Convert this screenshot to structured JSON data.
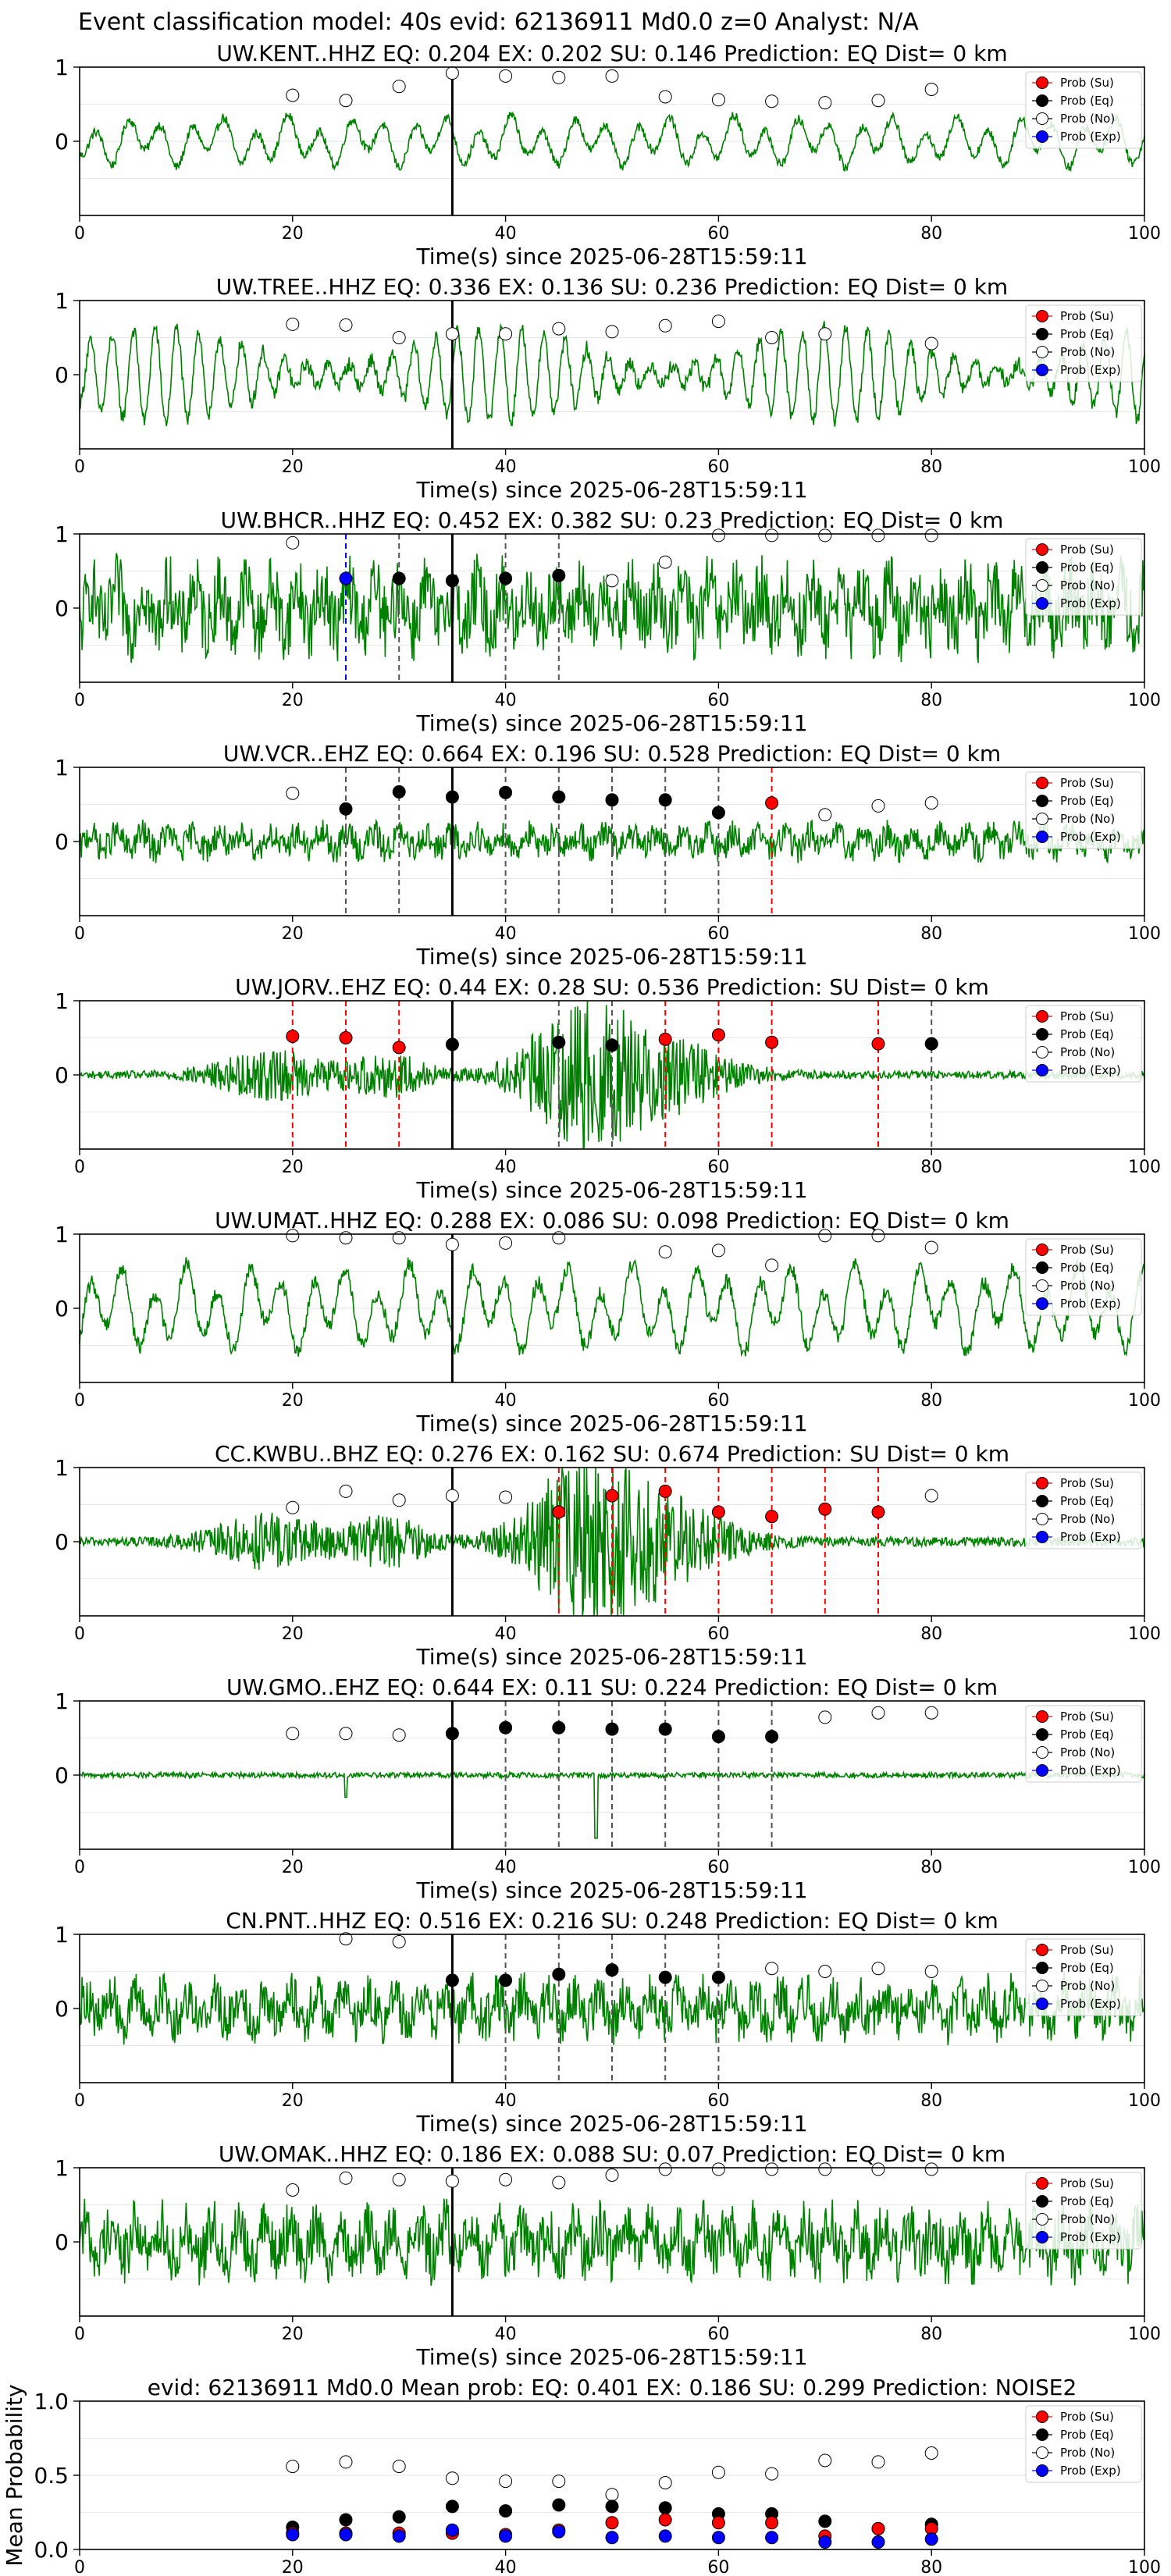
{
  "figure": {
    "suptitle": "Event classification model: 40s evid: 62136911 Md0.0 z=0 Analyst: N/A",
    "legend_labels": [
      "Prob (Su)",
      "Prob (Eq)",
      "Prob (No)",
      "Prob (Exp)"
    ],
    "colors": {
      "su": "#ff0000",
      "eq": "#000000",
      "no": "#ffffff",
      "exp": "#0000ff",
      "waveform": "#008000",
      "grid": "#e6e6e6"
    }
  },
  "chart_data": [
    {
      "type": "line",
      "title": "UW.KENT..HHZ   EQ: 0.204  EX: 0.202  SU: 0.146   Prediction: EQ    Dist= 0 km",
      "xlabel": "Time(s) since 2025-06-28T15:59:11",
      "xlim": [
        0,
        100
      ],
      "ylim": [
        -1,
        1
      ],
      "xticks": [
        "0",
        "20",
        "40",
        "60",
        "80",
        "100"
      ],
      "yticks": [
        "1",
        "0"
      ],
      "waveform": {
        "style": "smooth",
        "amplitude": 0.35
      },
      "origin_time": 35,
      "points": [
        {
          "x": 20,
          "y": 0.62,
          "cls": "no"
        },
        {
          "x": 25,
          "y": 0.55,
          "cls": "no"
        },
        {
          "x": 30,
          "y": 0.74,
          "cls": "no"
        },
        {
          "x": 35,
          "y": 0.92,
          "cls": "no"
        },
        {
          "x": 40,
          "y": 0.88,
          "cls": "no"
        },
        {
          "x": 45,
          "y": 0.86,
          "cls": "no"
        },
        {
          "x": 50,
          "y": 0.88,
          "cls": "no"
        },
        {
          "x": 55,
          "y": 0.6,
          "cls": "no"
        },
        {
          "x": 60,
          "y": 0.56,
          "cls": "no"
        },
        {
          "x": 65,
          "y": 0.54,
          "cls": "no"
        },
        {
          "x": 70,
          "y": 0.52,
          "cls": "no"
        },
        {
          "x": 75,
          "y": 0.55,
          "cls": "no"
        },
        {
          "x": 80,
          "y": 0.7,
          "cls": "no"
        }
      ]
    },
    {
      "type": "line",
      "title": "UW.TREE..HHZ   EQ: 0.336  EX: 0.136  SU: 0.236   Prediction: EQ    Dist= 0 km",
      "xlabel": "Time(s) since 2025-06-28T15:59:11",
      "xlim": [
        0,
        100
      ],
      "ylim": [
        -1,
        1
      ],
      "xticks": [
        "0",
        "20",
        "40",
        "60",
        "80",
        "100"
      ],
      "yticks": [
        "1",
        "0"
      ],
      "waveform": {
        "style": "oscillating",
        "amplitude": 0.8
      },
      "origin_time": 35,
      "points": [
        {
          "x": 20,
          "y": 0.68,
          "cls": "no"
        },
        {
          "x": 25,
          "y": 0.67,
          "cls": "no"
        },
        {
          "x": 30,
          "y": 0.5,
          "cls": "no"
        },
        {
          "x": 35,
          "y": 0.55,
          "cls": "no"
        },
        {
          "x": 40,
          "y": 0.55,
          "cls": "no"
        },
        {
          "x": 45,
          "y": 0.62,
          "cls": "no"
        },
        {
          "x": 50,
          "y": 0.58,
          "cls": "no"
        },
        {
          "x": 55,
          "y": 0.66,
          "cls": "no"
        },
        {
          "x": 60,
          "y": 0.72,
          "cls": "no"
        },
        {
          "x": 65,
          "y": 0.5,
          "cls": "no"
        },
        {
          "x": 70,
          "y": 0.55,
          "cls": "no"
        },
        {
          "x": 80,
          "y": 0.42,
          "cls": "no"
        }
      ]
    },
    {
      "type": "line",
      "title": "UW.BHCR..HHZ   EQ: 0.452  EX: 0.382  SU: 0.23   Prediction: EQ    Dist= 0 km",
      "xlabel": "Time(s) since 2025-06-28T15:59:11",
      "xlim": [
        0,
        100
      ],
      "ylim": [
        -1,
        1
      ],
      "xticks": [
        "0",
        "20",
        "40",
        "60",
        "80",
        "100"
      ],
      "yticks": [
        "1",
        "0"
      ],
      "waveform": {
        "style": "noisy",
        "amplitude": 0.75
      },
      "origin_time": 35,
      "points": [
        {
          "x": 20,
          "y": 0.88,
          "cls": "no"
        },
        {
          "x": 25,
          "y": 0.4,
          "cls": "exp"
        },
        {
          "x": 30,
          "y": 0.4,
          "cls": "eq"
        },
        {
          "x": 35,
          "y": 0.37,
          "cls": "eq"
        },
        {
          "x": 40,
          "y": 0.4,
          "cls": "eq"
        },
        {
          "x": 45,
          "y": 0.44,
          "cls": "eq"
        },
        {
          "x": 50,
          "y": 0.37,
          "cls": "no"
        },
        {
          "x": 55,
          "y": 0.62,
          "cls": "no"
        },
        {
          "x": 60,
          "y": 0.98,
          "cls": "no"
        },
        {
          "x": 65,
          "y": 0.98,
          "cls": "no"
        },
        {
          "x": 70,
          "y": 0.98,
          "cls": "no"
        },
        {
          "x": 75,
          "y": 0.98,
          "cls": "no"
        },
        {
          "x": 80,
          "y": 0.98,
          "cls": "no"
        }
      ]
    },
    {
      "type": "line",
      "title": "UW.VCR..EHZ   EQ: 0.664  EX: 0.196  SU: 0.528   Prediction: EQ    Dist= 0 km",
      "xlabel": "Time(s) since 2025-06-28T15:59:11",
      "xlim": [
        0,
        100
      ],
      "ylim": [
        -1,
        1
      ],
      "xticks": [
        "0",
        "20",
        "40",
        "60",
        "80",
        "100"
      ],
      "yticks": [
        "1",
        "0"
      ],
      "waveform": {
        "style": "noisy",
        "amplitude": 0.3
      },
      "origin_time": 35,
      "points": [
        {
          "x": 20,
          "y": 0.65,
          "cls": "no"
        },
        {
          "x": 25,
          "y": 0.44,
          "cls": "eq"
        },
        {
          "x": 30,
          "y": 0.67,
          "cls": "eq"
        },
        {
          "x": 35,
          "y": 0.6,
          "cls": "eq"
        },
        {
          "x": 40,
          "y": 0.66,
          "cls": "eq"
        },
        {
          "x": 45,
          "y": 0.6,
          "cls": "eq"
        },
        {
          "x": 50,
          "y": 0.56,
          "cls": "eq"
        },
        {
          "x": 55,
          "y": 0.56,
          "cls": "eq"
        },
        {
          "x": 60,
          "y": 0.39,
          "cls": "eq"
        },
        {
          "x": 65,
          "y": 0.52,
          "cls": "su"
        },
        {
          "x": 70,
          "y": 0.36,
          "cls": "no"
        },
        {
          "x": 75,
          "y": 0.48,
          "cls": "no"
        },
        {
          "x": 80,
          "y": 0.52,
          "cls": "no"
        }
      ]
    },
    {
      "type": "line",
      "title": "UW.JORV..EHZ   EQ: 0.44  EX: 0.28  SU: 0.536   Prediction: SU    Dist= 0 km",
      "xlabel": "Time(s) since 2025-06-28T15:59:11",
      "xlim": [
        0,
        100
      ],
      "ylim": [
        -1,
        1
      ],
      "xticks": [
        "0",
        "20",
        "40",
        "60",
        "80",
        "100"
      ],
      "yticks": [
        "1",
        "0"
      ],
      "waveform": {
        "style": "bursts",
        "amplitude": 0.6
      },
      "origin_time": 35,
      "points": [
        {
          "x": 20,
          "y": 0.52,
          "cls": "su"
        },
        {
          "x": 25,
          "y": 0.5,
          "cls": "su"
        },
        {
          "x": 30,
          "y": 0.37,
          "cls": "su"
        },
        {
          "x": 35,
          "y": 0.41,
          "cls": "eq"
        },
        {
          "x": 45,
          "y": 0.44,
          "cls": "eq"
        },
        {
          "x": 50,
          "y": 0.4,
          "cls": "eq"
        },
        {
          "x": 55,
          "y": 0.48,
          "cls": "su"
        },
        {
          "x": 60,
          "y": 0.54,
          "cls": "su"
        },
        {
          "x": 65,
          "y": 0.44,
          "cls": "su"
        },
        {
          "x": 75,
          "y": 0.42,
          "cls": "su"
        },
        {
          "x": 80,
          "y": 0.42,
          "cls": "eq"
        }
      ]
    },
    {
      "type": "line",
      "title": "UW.UMAT..HHZ   EQ: 0.288  EX: 0.086  SU: 0.098   Prediction: EQ    Dist= 0 km",
      "xlabel": "Time(s) since 2025-06-28T15:59:11",
      "xlim": [
        0,
        100
      ],
      "ylim": [
        -1,
        1
      ],
      "xticks": [
        "0",
        "20",
        "40",
        "60",
        "80",
        "100"
      ],
      "yticks": [
        "1",
        "0"
      ],
      "waveform": {
        "style": "smooth",
        "amplitude": 0.6
      },
      "origin_time": 35,
      "points": [
        {
          "x": 20,
          "y": 0.98,
          "cls": "no"
        },
        {
          "x": 25,
          "y": 0.95,
          "cls": "no"
        },
        {
          "x": 30,
          "y": 0.95,
          "cls": "no"
        },
        {
          "x": 35,
          "y": 0.86,
          "cls": "no"
        },
        {
          "x": 40,
          "y": 0.88,
          "cls": "no"
        },
        {
          "x": 45,
          "y": 0.95,
          "cls": "no"
        },
        {
          "x": 55,
          "y": 0.76,
          "cls": "no"
        },
        {
          "x": 60,
          "y": 0.78,
          "cls": "no"
        },
        {
          "x": 65,
          "y": 0.58,
          "cls": "no"
        },
        {
          "x": 70,
          "y": 0.98,
          "cls": "no"
        },
        {
          "x": 75,
          "y": 0.98,
          "cls": "no"
        },
        {
          "x": 80,
          "y": 0.82,
          "cls": "no"
        }
      ]
    },
    {
      "type": "line",
      "title": "CC.KWBU..BHZ   EQ: 0.276  EX: 0.162  SU: 0.674   Prediction: SU    Dist= 0 km",
      "xlabel": "Time(s) since 2025-06-28T15:59:11",
      "xlim": [
        0,
        100
      ],
      "ylim": [
        -1,
        1
      ],
      "xticks": [
        "0",
        "20",
        "40",
        "60",
        "80",
        "100"
      ],
      "yticks": [
        "1",
        "0"
      ],
      "waveform": {
        "style": "bursts",
        "amplitude": 0.7
      },
      "origin_time": 35,
      "points": [
        {
          "x": 20,
          "y": 0.46,
          "cls": "no"
        },
        {
          "x": 25,
          "y": 0.68,
          "cls": "no"
        },
        {
          "x": 30,
          "y": 0.56,
          "cls": "no"
        },
        {
          "x": 35,
          "y": 0.62,
          "cls": "no"
        },
        {
          "x": 40,
          "y": 0.6,
          "cls": "no"
        },
        {
          "x": 45,
          "y": 0.4,
          "cls": "su"
        },
        {
          "x": 50,
          "y": 0.62,
          "cls": "su"
        },
        {
          "x": 55,
          "y": 0.68,
          "cls": "su"
        },
        {
          "x": 60,
          "y": 0.4,
          "cls": "su"
        },
        {
          "x": 65,
          "y": 0.34,
          "cls": "su"
        },
        {
          "x": 70,
          "y": 0.44,
          "cls": "su"
        },
        {
          "x": 75,
          "y": 0.4,
          "cls": "su"
        },
        {
          "x": 80,
          "y": 0.62,
          "cls": "no"
        }
      ]
    },
    {
      "type": "line",
      "title": "UW.GMO..EHZ   EQ: 0.644  EX: 0.11  SU: 0.224   Prediction: EQ    Dist= 0 km",
      "xlabel": "Time(s) since 2025-06-28T15:59:11",
      "xlim": [
        0,
        100
      ],
      "ylim": [
        -1,
        1
      ],
      "xticks": [
        "0",
        "20",
        "40",
        "60",
        "80",
        "100"
      ],
      "yticks": [
        "1",
        "0"
      ],
      "waveform": {
        "style": "flat",
        "amplitude": 0.06
      },
      "origin_time": 35,
      "points": [
        {
          "x": 20,
          "y": 0.56,
          "cls": "no"
        },
        {
          "x": 25,
          "y": 0.56,
          "cls": "no"
        },
        {
          "x": 30,
          "y": 0.54,
          "cls": "no"
        },
        {
          "x": 35,
          "y": 0.56,
          "cls": "eq"
        },
        {
          "x": 40,
          "y": 0.64,
          "cls": "eq"
        },
        {
          "x": 45,
          "y": 0.64,
          "cls": "eq"
        },
        {
          "x": 50,
          "y": 0.62,
          "cls": "eq"
        },
        {
          "x": 55,
          "y": 0.62,
          "cls": "eq"
        },
        {
          "x": 60,
          "y": 0.52,
          "cls": "eq"
        },
        {
          "x": 65,
          "y": 0.52,
          "cls": "eq"
        },
        {
          "x": 70,
          "y": 0.78,
          "cls": "no"
        },
        {
          "x": 75,
          "y": 0.84,
          "cls": "no"
        },
        {
          "x": 80,
          "y": 0.84,
          "cls": "no"
        }
      ]
    },
    {
      "type": "line",
      "title": "CN.PNT..HHZ   EQ: 0.516  EX: 0.216  SU: 0.248   Prediction: EQ    Dist= 0 km",
      "xlabel": "Time(s) since 2025-06-28T15:59:11",
      "xlim": [
        0,
        100
      ],
      "ylim": [
        -1,
        1
      ],
      "xticks": [
        "0",
        "20",
        "40",
        "60",
        "80",
        "100"
      ],
      "yticks": [
        "1",
        "0"
      ],
      "waveform": {
        "style": "noisy",
        "amplitude": 0.5
      },
      "origin_time": 35,
      "points": [
        {
          "x": 25,
          "y": 0.94,
          "cls": "no"
        },
        {
          "x": 30,
          "y": 0.9,
          "cls": "no"
        },
        {
          "x": 35,
          "y": 0.38,
          "cls": "eq"
        },
        {
          "x": 40,
          "y": 0.38,
          "cls": "eq"
        },
        {
          "x": 45,
          "y": 0.46,
          "cls": "eq"
        },
        {
          "x": 50,
          "y": 0.52,
          "cls": "eq"
        },
        {
          "x": 55,
          "y": 0.42,
          "cls": "eq"
        },
        {
          "x": 60,
          "y": 0.42,
          "cls": "eq"
        },
        {
          "x": 65,
          "y": 0.54,
          "cls": "no"
        },
        {
          "x": 70,
          "y": 0.5,
          "cls": "no"
        },
        {
          "x": 75,
          "y": 0.54,
          "cls": "no"
        },
        {
          "x": 80,
          "y": 0.5,
          "cls": "no"
        }
      ]
    },
    {
      "type": "line",
      "title": "UW.OMAK..HHZ   EQ: 0.186  EX: 0.088  SU: 0.07   Prediction: EQ    Dist= 0 km",
      "xlabel": "Time(s) since 2025-06-28T15:59:11",
      "xlim": [
        0,
        100
      ],
      "ylim": [
        -1,
        1
      ],
      "xticks": [
        "0",
        "20",
        "40",
        "60",
        "80",
        "100"
      ],
      "yticks": [
        "1",
        "0"
      ],
      "waveform": {
        "style": "noisy",
        "amplitude": 0.6
      },
      "origin_time": 35,
      "points": [
        {
          "x": 20,
          "y": 0.7,
          "cls": "no"
        },
        {
          "x": 25,
          "y": 0.86,
          "cls": "no"
        },
        {
          "x": 30,
          "y": 0.84,
          "cls": "no"
        },
        {
          "x": 35,
          "y": 0.82,
          "cls": "no"
        },
        {
          "x": 40,
          "y": 0.84,
          "cls": "no"
        },
        {
          "x": 45,
          "y": 0.8,
          "cls": "no"
        },
        {
          "x": 50,
          "y": 0.9,
          "cls": "no"
        },
        {
          "x": 55,
          "y": 0.98,
          "cls": "no"
        },
        {
          "x": 60,
          "y": 0.98,
          "cls": "no"
        },
        {
          "x": 65,
          "y": 0.98,
          "cls": "no"
        },
        {
          "x": 70,
          "y": 0.98,
          "cls": "no"
        },
        {
          "x": 75,
          "y": 0.98,
          "cls": "no"
        },
        {
          "x": 80,
          "y": 0.98,
          "cls": "no"
        }
      ]
    },
    {
      "type": "scatter",
      "title": "evid: 62136911   Md0.0    Mean prob:    EQ: 0.401  EX: 0.186  SU: 0.299    Prediction: NOISE2",
      "xlabel": "",
      "ylabel": "Mean Probability",
      "xlim": [
        0,
        100
      ],
      "ylim": [
        0,
        1
      ],
      "xticks": [
        "0",
        "20",
        "40",
        "60",
        "80",
        "100"
      ],
      "yticks": [
        "0.0",
        "0.5",
        "1.0"
      ],
      "x": [
        20,
        25,
        30,
        35,
        40,
        45,
        50,
        55,
        60,
        65,
        70,
        75,
        80
      ],
      "series": [
        {
          "name": "Prob (No)",
          "cls": "no",
          "values": [
            0.56,
            0.59,
            0.56,
            0.48,
            0.46,
            0.46,
            0.37,
            0.45,
            0.52,
            0.51,
            0.6,
            0.59,
            0.65
          ]
        },
        {
          "name": "Prob (Eq)",
          "cls": "eq",
          "values": [
            0.15,
            0.2,
            0.22,
            0.29,
            0.26,
            0.3,
            0.29,
            0.28,
            0.24,
            0.24,
            0.19,
            0.14,
            0.17
          ]
        },
        {
          "name": "Prob (Su)",
          "cls": "su",
          "values": [
            0.11,
            0.11,
            0.11,
            0.11,
            0.1,
            0.13,
            0.18,
            0.2,
            0.18,
            0.18,
            0.09,
            0.14,
            0.14
          ]
        },
        {
          "name": "Prob (Exp)",
          "cls": "exp",
          "values": [
            0.1,
            0.1,
            0.09,
            0.13,
            0.09,
            0.12,
            0.08,
            0.09,
            0.08,
            0.08,
            0.05,
            0.05,
            0.07
          ]
        }
      ]
    }
  ]
}
